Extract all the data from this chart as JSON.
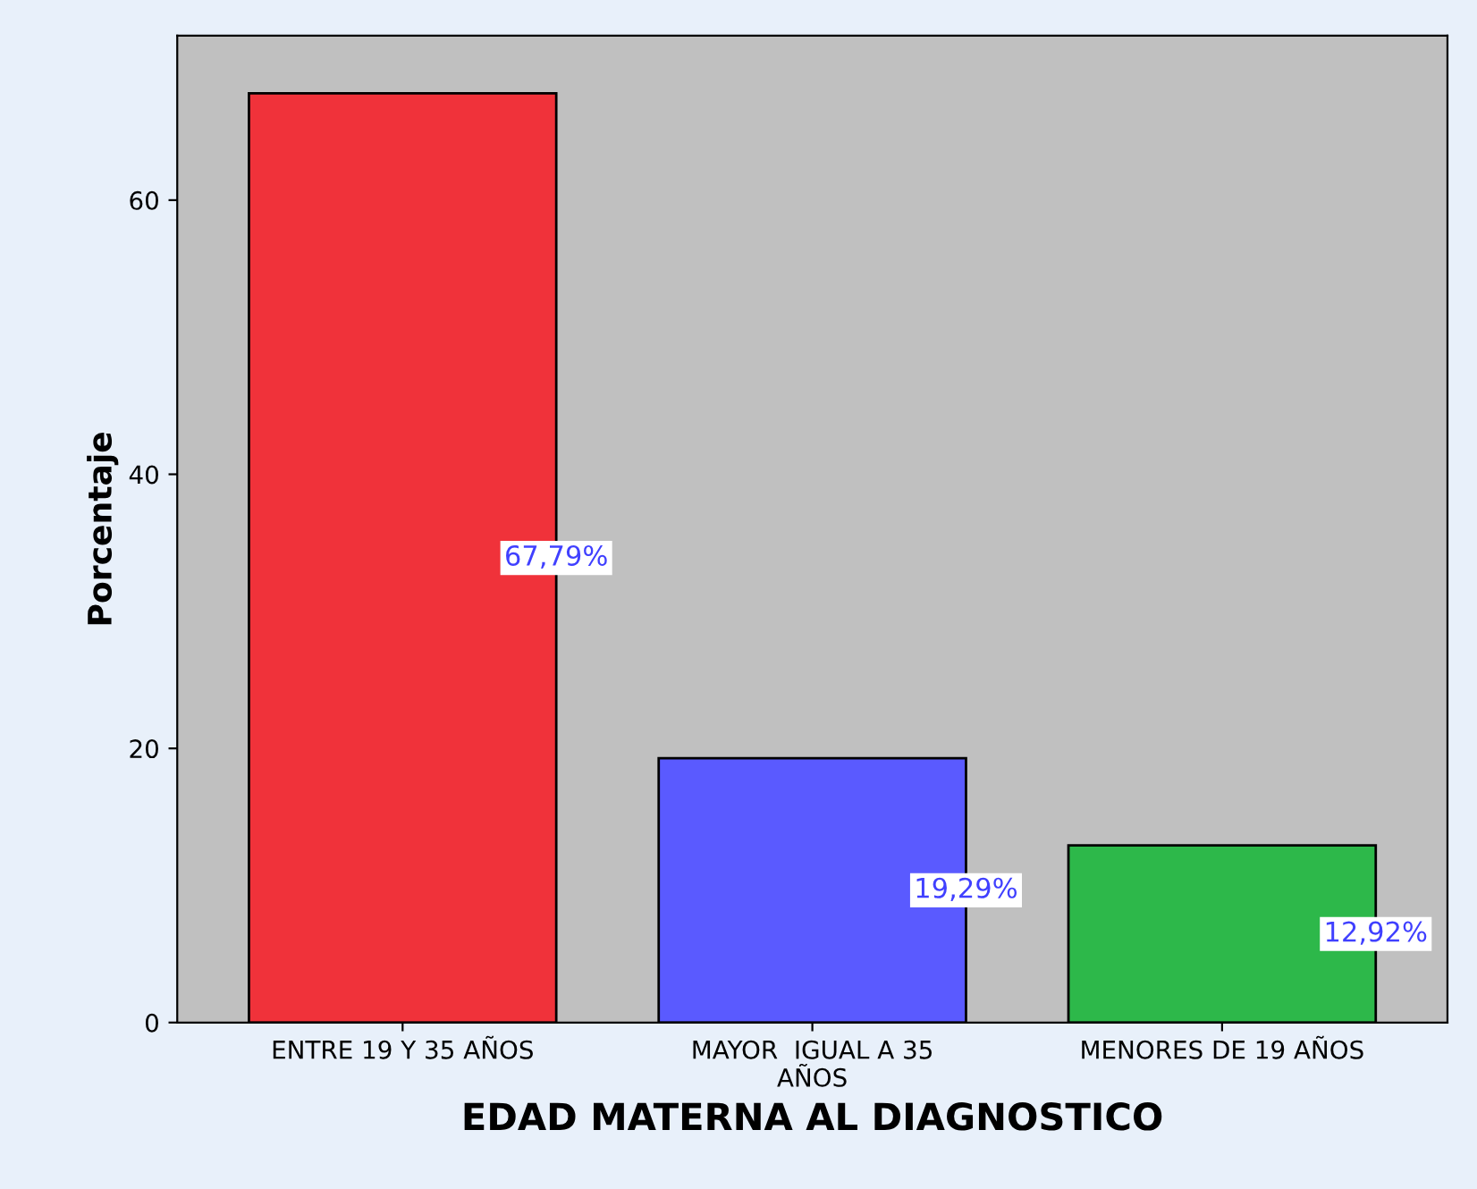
{
  "chart_data": {
    "type": "bar",
    "xlabel": "EDAD MATERNA AL DIAGNOSTICO",
    "ylabel": "Porcentaje",
    "categories": [
      "ENTRE 19 Y 35 AÑOS",
      "MAYOR  IGUAL A 35\nAÑOS",
      "MENORES DE 19 AÑOS"
    ],
    "values": [
      67.79,
      19.29,
      12.92
    ],
    "colors": [
      "#f0323a",
      "#5a5aff",
      "#2db84a"
    ],
    "value_labels": [
      "67,79%",
      "19,29%",
      "12,92%"
    ],
    "ylim": [
      0,
      72
    ],
    "yticks": [
      0,
      20,
      40,
      60
    ],
    "grid": false
  }
}
